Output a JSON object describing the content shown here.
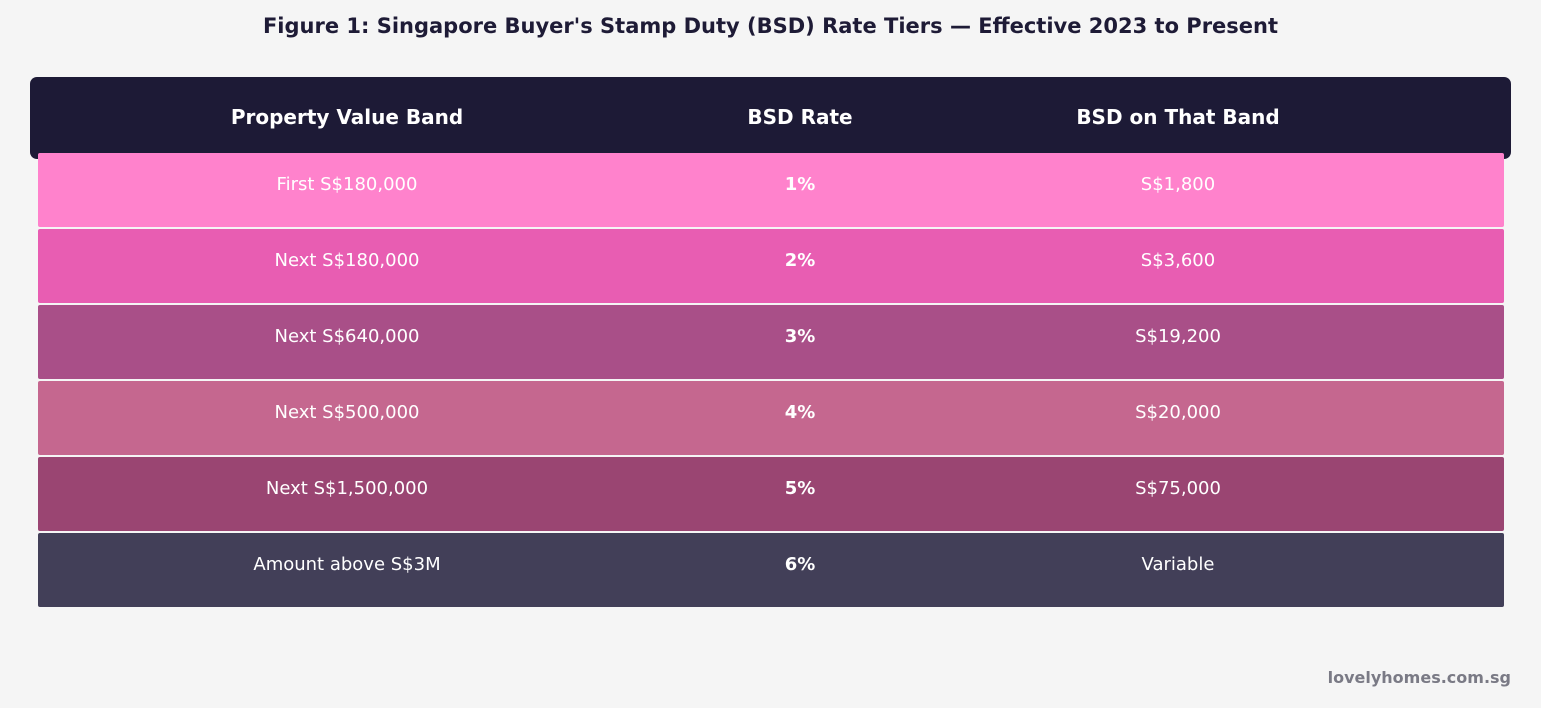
{
  "title": "Figure 1: Singapore Buyer's Stamp Duty (BSD) Rate Tiers — Effective 2023 to Present",
  "watermark": "lovelyhomes.com.sg",
  "chart_data": {
    "type": "table",
    "columns": [
      "Property Value Band",
      "BSD Rate",
      "BSD on That Band"
    ],
    "rows": [
      {
        "band": "First S$180,000",
        "rate": "1%",
        "duty": "S$1,800",
        "color": "#ff82cc"
      },
      {
        "band": "Next S$180,000",
        "rate": "2%",
        "duty": "S$3,600",
        "color": "#e85db2"
      },
      {
        "band": "Next S$640,000",
        "rate": "3%",
        "duty": "S$19,200",
        "color": "#a94f88"
      },
      {
        "band": "Next S$500,000",
        "rate": "4%",
        "duty": "S$20,000",
        "color": "#c5678f"
      },
      {
        "band": "Next S$1,500,000",
        "rate": "5%",
        "duty": "S$75,000",
        "color": "#9a4572"
      },
      {
        "band": "Amount above S$3M",
        "rate": "6%",
        "duty": "Variable",
        "color": "#423f58"
      }
    ],
    "header_color": "#1d1a36"
  }
}
